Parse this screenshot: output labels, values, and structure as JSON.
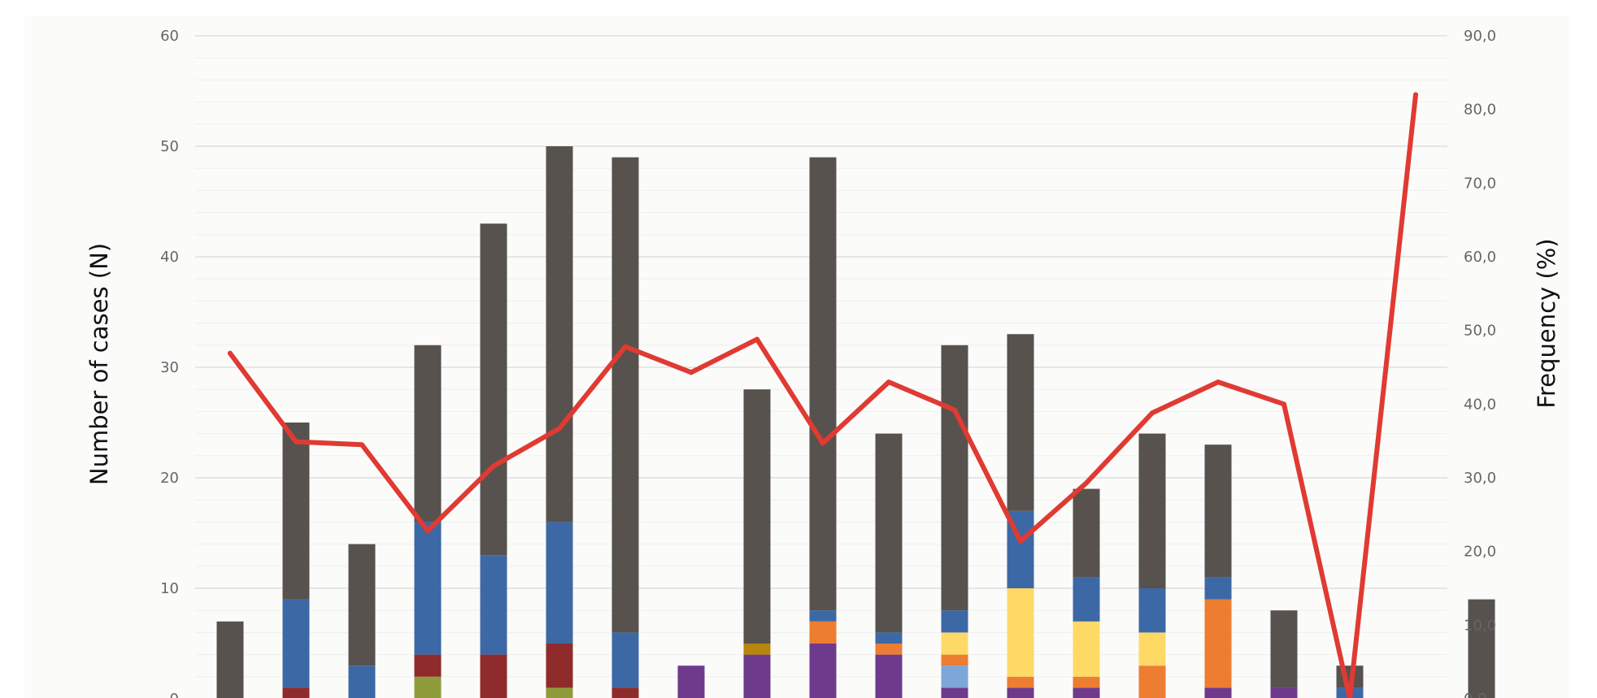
{
  "chart_data": {
    "type": "bar",
    "subtype": "stacked-bar-with-line",
    "title": "",
    "ylabel": "Number of cases (N)",
    "y2label": "Frequency (%)",
    "ylim": [
      0,
      60
    ],
    "y2lim": [
      0,
      90
    ],
    "y_ticks": [
      "0",
      "10",
      "20",
      "30",
      "40",
      "50",
      "60"
    ],
    "y2_ticks": [
      "0,0",
      "10,0",
      "20,0",
      "30,0",
      "40,0",
      "50,0",
      "60,0",
      "70,0",
      "80,0",
      "90,0"
    ],
    "grid": true,
    "legend": "none",
    "category_count": 19,
    "series": [
      {
        "color": "#6e3a8c",
        "values": [
          0,
          0,
          0,
          0,
          0,
          0,
          0,
          3,
          4,
          5,
          4,
          1,
          1,
          1,
          0,
          1,
          1,
          0,
          0
        ]
      },
      {
        "color": "#8e9c3c",
        "values": [
          0,
          0,
          0,
          2,
          0,
          1,
          0,
          0,
          0,
          0,
          0,
          0,
          0,
          0,
          0,
          0,
          0,
          0,
          0
        ]
      },
      {
        "color": "#548235",
        "values": [
          0,
          0,
          0,
          0,
          0,
          0,
          0,
          0,
          0,
          0,
          0,
          0,
          0,
          0,
          0,
          0,
          0,
          0,
          0
        ]
      },
      {
        "color": "#8f2b2b",
        "values": [
          0,
          1,
          0,
          2,
          4,
          4,
          1,
          0,
          0,
          0,
          0,
          0,
          0,
          0,
          0,
          0,
          0,
          0,
          0
        ]
      },
      {
        "color": "#7ea6d8",
        "values": [
          0,
          0,
          0,
          0,
          0,
          0,
          0,
          0,
          0,
          0,
          0,
          2,
          0,
          0,
          0,
          0,
          0,
          0,
          0
        ]
      },
      {
        "color": "#ed7d31",
        "values": [
          0,
          0,
          0,
          0,
          0,
          0,
          0,
          0,
          0,
          2,
          1,
          1,
          1,
          1,
          3,
          8,
          0,
          0,
          0
        ]
      },
      {
        "color": "#ffd966",
        "values": [
          0,
          0,
          0,
          0,
          0,
          0,
          0,
          0,
          0,
          0,
          0,
          2,
          8,
          5,
          3,
          0,
          0,
          0,
          0
        ]
      },
      {
        "color": "#b8860b",
        "values": [
          0,
          0,
          0,
          0,
          0,
          0,
          0,
          0,
          1,
          0,
          0,
          0,
          0,
          0,
          0,
          0,
          0,
          0,
          0
        ]
      },
      {
        "color": "#3d68a6",
        "values": [
          0,
          8,
          3,
          12,
          9,
          11,
          5,
          0,
          0,
          1,
          1,
          2,
          7,
          4,
          4,
          2,
          0,
          1,
          0
        ]
      },
      {
        "color": "#57524d",
        "values": [
          7,
          16,
          11,
          16,
          30,
          34,
          43,
          0,
          23,
          41,
          18,
          24,
          16,
          8,
          14,
          12,
          7,
          2,
          0
        ]
      }
    ],
    "extra_bar": {
      "color": "#57524d",
      "value": 9
    },
    "line": {
      "color": "#e03a32",
      "axis": "right",
      "values": [
        46.9,
        34.9,
        34.5,
        22.8,
        31.6,
        36.7,
        47.8,
        44.3,
        48.8,
        34.7,
        43.0,
        39.2,
        21.4,
        29.3,
        38.8,
        43.0,
        40.0,
        0.0,
        82.0
      ]
    }
  }
}
